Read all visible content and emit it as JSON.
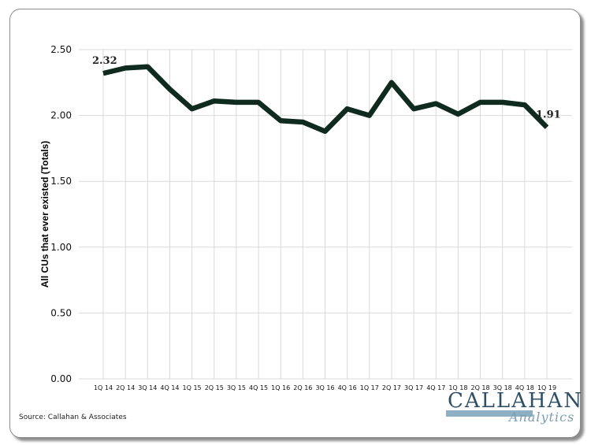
{
  "source_text": "Source: Callahan & Associates",
  "logo": {
    "main": "CALLAHAN",
    "sub": "Analytics"
  },
  "colors": {
    "line": "#0f2a1e",
    "grid": "#d9d9d9",
    "logo_main": "#2f4f64",
    "logo_bar": "#8fb0c4"
  },
  "chart_data": {
    "type": "line",
    "title": "",
    "xlabel": "",
    "ylabel": "All CUs that ever existed (Totals)",
    "categories": [
      "1Q 14",
      "2Q 14",
      "3Q 14",
      "4Q 14",
      "1Q 15",
      "2Q 15",
      "3Q 15",
      "4Q 15",
      "1Q 16",
      "2Q 16",
      "3Q 16",
      "4Q 16",
      "1Q 17",
      "2Q 17",
      "3Q 17",
      "4Q 17",
      "1Q 18",
      "2Q 18",
      "3Q 18",
      "4Q 18",
      "1Q 19"
    ],
    "series": [
      {
        "values": [
          2.32,
          2.36,
          2.37,
          2.2,
          2.05,
          2.11,
          2.1,
          2.1,
          1.96,
          1.95,
          1.88,
          2.05,
          2.0,
          2.25,
          2.05,
          2.09,
          2.01,
          2.1,
          2.1,
          2.08,
          1.91
        ]
      }
    ],
    "ylim": [
      0,
      2.5
    ],
    "yticks": [
      "0.00",
      "0.50",
      "1.00",
      "1.50",
      "2.00",
      "2.50"
    ],
    "data_labels": [
      {
        "index": 0,
        "text": "2.32"
      },
      {
        "index": 20,
        "text": "1.91"
      }
    ],
    "grid": true,
    "legend": "none"
  }
}
